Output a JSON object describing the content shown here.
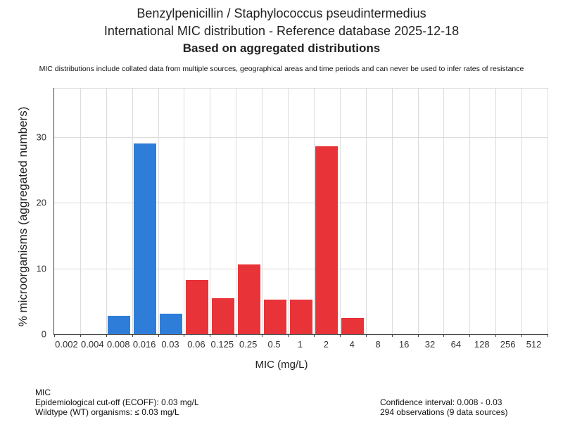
{
  "chart_data": {
    "type": "bar",
    "title": "Benzylpenicillin / Staphylococcus pseudintermedius",
    "subtitle": "International MIC distribution - Reference database 2025-12-18",
    "subtitle2": "Based on aggregated distributions",
    "disclaimer": "MIC distributions include collated data from multiple sources, geographical areas and time periods and can never be used to infer rates of resistance",
    "categories": [
      "0.002",
      "0.004",
      "0.008",
      "0.016",
      "0.03",
      "0.06",
      "0.125",
      "0.25",
      "0.5",
      "1",
      "2",
      "4",
      "8",
      "16",
      "32",
      "64",
      "128",
      "256",
      "512"
    ],
    "values": [
      0,
      0,
      2.8,
      29,
      3.1,
      8.3,
      5.5,
      10.6,
      5.2,
      5.2,
      28.6,
      2.5,
      0,
      0,
      0,
      0,
      0,
      0,
      0
    ],
    "wildtype": [
      true,
      true,
      true,
      true,
      true,
      false,
      false,
      false,
      false,
      false,
      false,
      false,
      false,
      false,
      false,
      false,
      false,
      false,
      false
    ],
    "colors": {
      "wildtype": "#2e7dd8",
      "non_wildtype": "#e83338"
    },
    "xlabel": "MIC (mg/L)",
    "ylabel": "% microorganisms (aggregated numbers)",
    "ylim": [
      0,
      37.5
    ],
    "yticks": [
      0,
      10,
      20,
      30
    ],
    "grid": true,
    "legend": false
  },
  "footer": {
    "left": [
      "MIC",
      "Epidemiological cut-off (ECOFF): 0.03 mg/L",
      "Wildtype (WT) organisms: ≤ 0.03 mg/L"
    ],
    "right": [
      "Confidence interval: 0.008 - 0.03",
      "294 observations (9 data sources)"
    ]
  }
}
